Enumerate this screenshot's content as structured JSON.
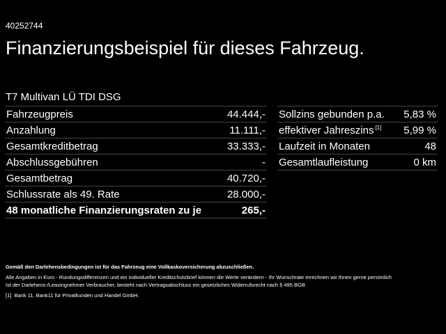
{
  "code": "40252744",
  "title": "Finanzierungsbeispiel für dieses Fahrzeug.",
  "model": "T7 Multivan LÜ TDI DSG",
  "left_rows": [
    {
      "label": "Fahrzeugpreis",
      "value": "44.444,-"
    },
    {
      "label": "Anzahlung",
      "value": "11.111,-"
    },
    {
      "label": "Gesamtkreditbetrag",
      "value": "33.333,-"
    },
    {
      "label": "Abschlussgebühren",
      "value": "-"
    },
    {
      "label": "Gesamtbetrag",
      "value": "40.720,-"
    },
    {
      "label": "Schlussrate als 49. Rate",
      "value": "28.000,-"
    },
    {
      "label": "48 monatliche Finanzierungsraten zu je",
      "value": "265,-"
    }
  ],
  "right_rows": [
    {
      "label": "Sollzins gebunden p.a.",
      "value": "5,83 %"
    },
    {
      "label": "effektiver Jahreszins",
      "sup": "[1]",
      "value": "5,99 %"
    },
    {
      "label": "Laufzeit in Monaten",
      "value": "48"
    },
    {
      "label": "Gesamtlaufleistung",
      "value": "0 km"
    }
  ],
  "footer": {
    "bold": "Gemäß den Darlehensbedingungen ist für das Fahrzeug eine Vollkaskoversicherung abzuschließen.",
    "line1": "Alle Angaben in Euro - Rundungsdifferenzen und ein individueller Kreditschutzbrief können die Werte verändern - Ihr Wunschrate errechnen wir Ihnen gerne persönlich",
    "line2": "Ist der Darlehens-/Leasingnehmer Verbraucher, besteht nach Vertragsabschluss ein gesetzliches Widerrufsrecht nach § 495 BGB",
    "note_mark": "[1]",
    "note": "Bank 11, Bank11 für Privatkunden und Handel GmbH."
  }
}
